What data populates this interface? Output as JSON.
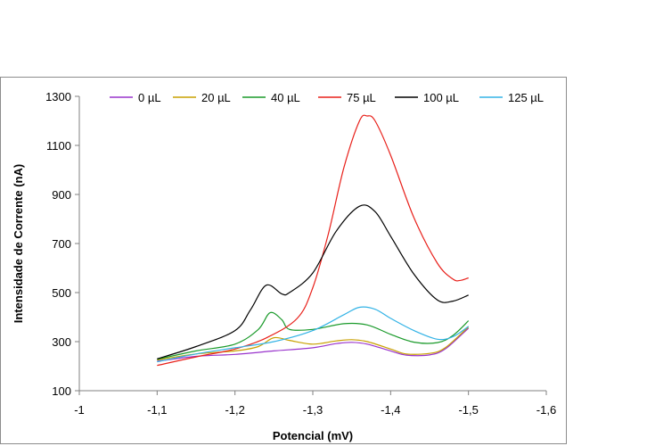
{
  "chart_data": {
    "type": "line",
    "title": "",
    "xlabel": "Potencial (mV)",
    "ylabel": "Intensidade de Corrente (nA)",
    "xlim": [
      -1,
      -1.6
    ],
    "ylim": [
      100,
      1300
    ],
    "x_ticks": [
      -1,
      -1.1,
      -1.2,
      -1.3,
      -1.4,
      -1.5,
      -1.6
    ],
    "x_tick_labels": [
      "-1",
      "-1,1",
      "-1,2",
      "-1,3",
      "-1,4",
      "-1,5",
      "-1,6"
    ],
    "y_ticks": [
      100,
      300,
      500,
      700,
      900,
      1100,
      1300
    ],
    "y_tick_labels": [
      "100",
      "300",
      "500",
      "700",
      "900",
      "1100",
      "1300"
    ],
    "grid": false,
    "legend_position": "top",
    "series": [
      {
        "name": "0 µL",
        "color": "#9933cc",
        "points": [
          [
            -1.1,
            220
          ],
          [
            -1.15,
            240
          ],
          [
            -1.2,
            248
          ],
          [
            -1.25,
            262
          ],
          [
            -1.3,
            275
          ],
          [
            -1.33,
            292
          ],
          [
            -1.35,
            297
          ],
          [
            -1.37,
            290
          ],
          [
            -1.4,
            262
          ],
          [
            -1.42,
            245
          ],
          [
            -1.45,
            246
          ],
          [
            -1.47,
            270
          ],
          [
            -1.5,
            355
          ]
        ]
      },
      {
        "name": "20 µL",
        "color": "#c8a000",
        "points": [
          [
            -1.1,
            225
          ],
          [
            -1.15,
            250
          ],
          [
            -1.2,
            262
          ],
          [
            -1.23,
            280
          ],
          [
            -1.25,
            316
          ],
          [
            -1.27,
            305
          ],
          [
            -1.3,
            290
          ],
          [
            -1.33,
            303
          ],
          [
            -1.35,
            308
          ],
          [
            -1.37,
            300
          ],
          [
            -1.4,
            270
          ],
          [
            -1.42,
            250
          ],
          [
            -1.45,
            252
          ],
          [
            -1.47,
            275
          ],
          [
            -1.5,
            360
          ]
        ]
      },
      {
        "name": "40 µL",
        "color": "#1a9a2a",
        "points": [
          [
            -1.1,
            228
          ],
          [
            -1.15,
            262
          ],
          [
            -1.2,
            290
          ],
          [
            -1.23,
            350
          ],
          [
            -1.245,
            418
          ],
          [
            -1.26,
            390
          ],
          [
            -1.27,
            350
          ],
          [
            -1.3,
            350
          ],
          [
            -1.34,
            373
          ],
          [
            -1.37,
            368
          ],
          [
            -1.4,
            330
          ],
          [
            -1.43,
            298
          ],
          [
            -1.46,
            296
          ],
          [
            -1.48,
            325
          ],
          [
            -1.5,
            385
          ]
        ]
      },
      {
        "name": "75 µL",
        "color": "#e8201a",
        "points": [
          [
            -1.1,
            203
          ],
          [
            -1.15,
            238
          ],
          [
            -1.2,
            270
          ],
          [
            -1.24,
            315
          ],
          [
            -1.28,
            395
          ],
          [
            -1.3,
            520
          ],
          [
            -1.32,
            740
          ],
          [
            -1.34,
            1010
          ],
          [
            -1.36,
            1200
          ],
          [
            -1.37,
            1220
          ],
          [
            -1.38,
            1200
          ],
          [
            -1.4,
            1060
          ],
          [
            -1.43,
            805
          ],
          [
            -1.46,
            620
          ],
          [
            -1.48,
            555
          ],
          [
            -1.49,
            550
          ],
          [
            -1.5,
            560
          ]
        ]
      },
      {
        "name": "100 µL",
        "color": "#000000",
        "points": [
          [
            -1.1,
            230
          ],
          [
            -1.15,
            280
          ],
          [
            -1.2,
            345
          ],
          [
            -1.22,
            430
          ],
          [
            -1.24,
            530
          ],
          [
            -1.26,
            495
          ],
          [
            -1.27,
            500
          ],
          [
            -1.3,
            580
          ],
          [
            -1.33,
            750
          ],
          [
            -1.36,
            852
          ],
          [
            -1.38,
            830
          ],
          [
            -1.4,
            730
          ],
          [
            -1.43,
            575
          ],
          [
            -1.46,
            470
          ],
          [
            -1.48,
            465
          ],
          [
            -1.5,
            490
          ]
        ]
      },
      {
        "name": "125 µL",
        "color": "#33b3e6",
        "points": [
          [
            -1.1,
            218
          ],
          [
            -1.15,
            250
          ],
          [
            -1.2,
            275
          ],
          [
            -1.25,
            300
          ],
          [
            -1.3,
            345
          ],
          [
            -1.34,
            410
          ],
          [
            -1.36,
            440
          ],
          [
            -1.38,
            432
          ],
          [
            -1.4,
            395
          ],
          [
            -1.43,
            345
          ],
          [
            -1.46,
            310
          ],
          [
            -1.48,
            320
          ],
          [
            -1.5,
            362
          ]
        ]
      }
    ]
  }
}
